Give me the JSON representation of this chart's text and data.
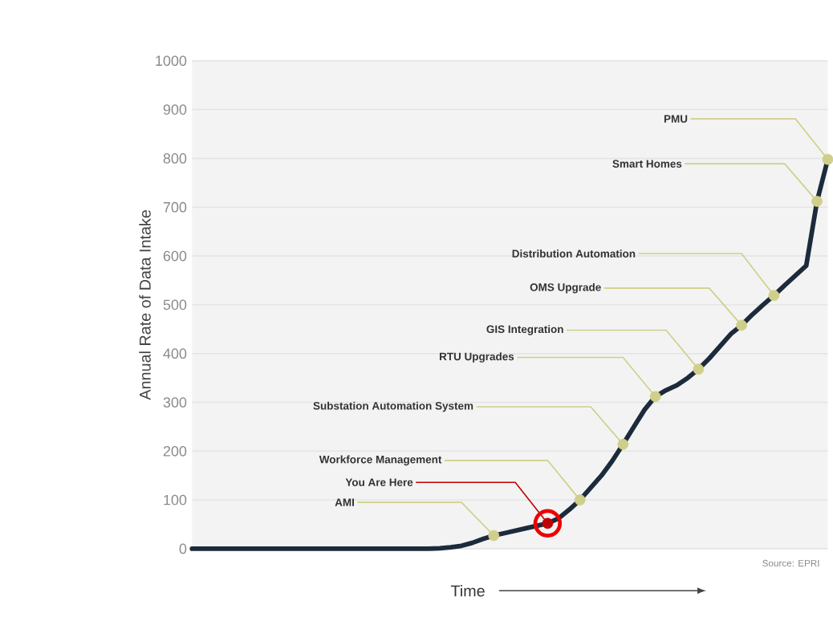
{
  "chart_data": {
    "type": "line",
    "ylabel": "Annual Rate of Data Intake",
    "xlabel": "Time",
    "annotations": [
      "Source: EPRI"
    ],
    "categories": [
      null,
      null,
      null,
      null,
      null,
      null,
      null,
      null,
      null,
      null,
      null,
      null,
      null,
      null,
      null,
      null,
      null,
      null,
      null,
      null,
      null,
      null,
      null,
      null,
      null,
      null,
      null,
      null,
      null,
      null,
      null,
      null,
      null,
      null,
      null,
      null,
      null,
      null,
      null,
      null,
      null,
      null,
      null,
      null,
      null,
      null,
      null,
      null,
      null,
      null,
      null,
      null,
      null,
      null,
      null,
      null,
      null,
      null,
      null,
      null
    ],
    "ylim": [
      0,
      1000
    ],
    "yticks": [
      0,
      100,
      200,
      300,
      400,
      500,
      600,
      700,
      800,
      900,
      1000
    ],
    "grid": "y",
    "tick_labels": "y",
    "series": [
      {
        "type": "line",
        "color": "#1c2b3c",
        "marker": "none",
        "line_style": "solid",
        "values": [
          0,
          0,
          0,
          0,
          0,
          0,
          0,
          0,
          0,
          0,
          0,
          0,
          0,
          0,
          0,
          0,
          0,
          0,
          0,
          0,
          0,
          0,
          0,
          1,
          3,
          6,
          12,
          20,
          27,
          32,
          37,
          42,
          47,
          52,
          62,
          80,
          100,
          125,
          150,
          180,
          214,
          250,
          285,
          312,
          325,
          335,
          350,
          368,
          390,
          415,
          440,
          458,
          480,
          500,
          519,
          540,
          560,
          580,
          712,
          798
        ]
      },
      {
        "type": "scatter",
        "color": "#cfcf8a",
        "marker": "circle",
        "values": [
          null,
          null,
          null,
          null,
          null,
          null,
          null,
          null,
          null,
          null,
          null,
          null,
          null,
          null,
          null,
          null,
          null,
          null,
          null,
          null,
          null,
          null,
          null,
          null,
          null,
          null,
          null,
          null,
          27,
          null,
          null,
          null,
          null,
          52,
          null,
          null,
          100,
          null,
          null,
          null,
          214,
          null,
          null,
          312,
          null,
          null,
          null,
          368,
          null,
          null,
          null,
          458,
          null,
          null,
          519,
          null,
          null,
          null,
          712,
          798
        ],
        "colors": [
          null,
          null,
          null,
          null,
          null,
          null,
          null,
          null,
          null,
          null,
          null,
          null,
          null,
          null,
          null,
          null,
          null,
          null,
          null,
          null,
          null,
          null,
          null,
          null,
          null,
          null,
          null,
          null,
          "#cfcf8a",
          null,
          null,
          null,
          null,
          "#c00000",
          null,
          null,
          "#cfcf8a",
          null,
          null,
          null,
          "#cfcf8a",
          null,
          null,
          "#cfcf8a",
          null,
          null,
          null,
          "#cfcf8a",
          null,
          null,
          null,
          "#cfcf8a",
          null,
          null,
          "#cfcf8a",
          null,
          null,
          null,
          "#cfcf8a",
          "#cfcf8a"
        ],
        "value_labels": [
          null,
          null,
          null,
          null,
          null,
          null,
          null,
          null,
          null,
          null,
          null,
          null,
          null,
          null,
          null,
          null,
          null,
          null,
          null,
          null,
          null,
          null,
          null,
          null,
          null,
          null,
          null,
          null,
          "AMI",
          null,
          null,
          null,
          null,
          "You Are Here",
          null,
          null,
          "Workforce Management",
          null,
          null,
          null,
          "Substation Automation System",
          null,
          null,
          "RTU Upgrades",
          null,
          null,
          null,
          "GIS Integration",
          null,
          null,
          null,
          "OMS Upgrade",
          null,
          null,
          "Distribution Automation",
          null,
          null,
          null,
          "Smart Homes",
          "PMU"
        ]
      }
    ]
  }
}
